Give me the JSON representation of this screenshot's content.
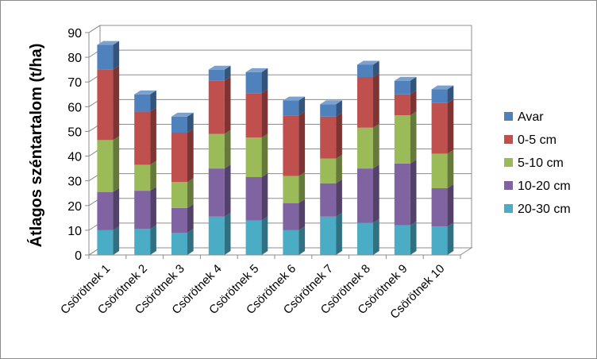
{
  "chart_data": {
    "type": "bar",
    "stacked": true,
    "three_d": true,
    "ylabel": "Átlagos széntartalom (t/ha)",
    "xlabel": "",
    "ylim": [
      0,
      90
    ],
    "yticks": [
      "0",
      "10",
      "20",
      "30",
      "40",
      "50",
      "60",
      "70",
      "80",
      "90"
    ],
    "categories": [
      "Csörötnek 1",
      "Csörötnek 2",
      "Csörötnek 3",
      "Csörötnek 4",
      "Csörötnek 5",
      "Csörötnek 6",
      "Csörötnek 7",
      "Csörötnek 8",
      "Csörötnek 9",
      "Csörötnek 10"
    ],
    "series": [
      {
        "name": "20-30 cm",
        "color": "#4bacc6",
        "values": [
          10,
          10.5,
          9,
          15.5,
          14,
          10,
          15.5,
          13,
          12,
          11.5
        ]
      },
      {
        "name": "10-20 cm",
        "color": "#8064a2",
        "values": [
          15.5,
          15.5,
          10,
          19.5,
          17.5,
          11,
          13.5,
          22,
          25,
          15.5
        ]
      },
      {
        "name": "5-10 cm",
        "color": "#9bbb59",
        "values": [
          21,
          10.5,
          10.5,
          14,
          16,
          11,
          10,
          16.5,
          19.5,
          14
        ]
      },
      {
        "name": "0-5 cm",
        "color": "#c0504d",
        "values": [
          28.5,
          21.5,
          20,
          21.5,
          18,
          24.5,
          17,
          20.5,
          8.5,
          20.5
        ]
      },
      {
        "name": "Avar",
        "color": "#4f81bd",
        "values": [
          10,
          7,
          6.5,
          4.5,
          8.5,
          6,
          5,
          5,
          5.5,
          5.5
        ]
      }
    ],
    "legend_position": "right",
    "grid": true
  }
}
